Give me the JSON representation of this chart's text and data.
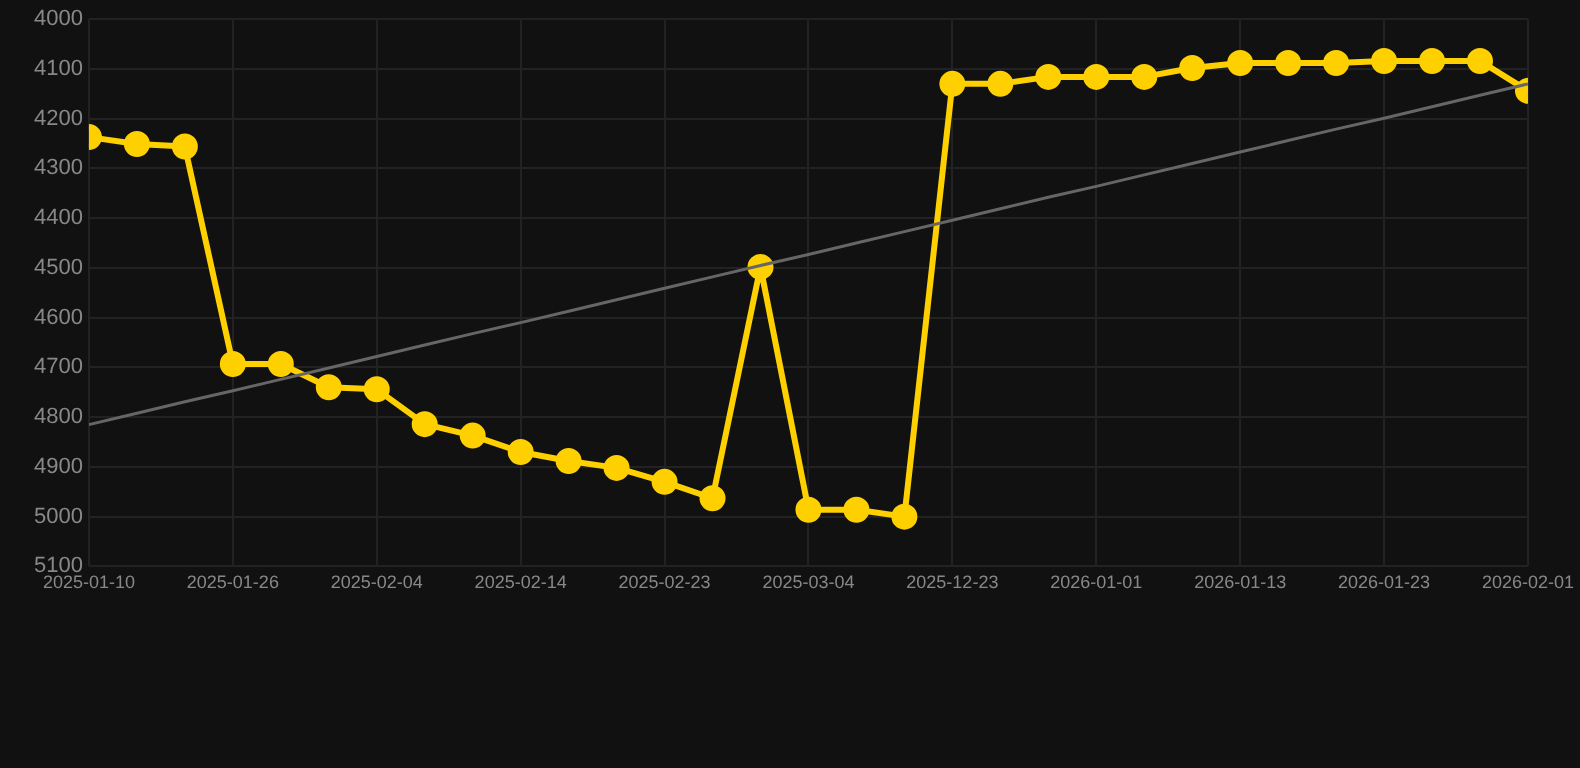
{
  "chart_data": {
    "type": "line",
    "categories": [
      "2025-01-10",
      null,
      null,
      "2025-01-26",
      null,
      null,
      "2025-02-04",
      null,
      null,
      "2025-02-14",
      null,
      null,
      "2025-02-23",
      null,
      null,
      "2025-03-04",
      null,
      null,
      "2025-12-23",
      null,
      null,
      "2026-01-01",
      null,
      null,
      "2026-01-13",
      null,
      null,
      "2026-01-23",
      null,
      null,
      "2026-02-01"
    ],
    "series": [
      {
        "type": "line",
        "color": "#ffd000",
        "marker": "circle",
        "values": [
          4237,
          4251,
          4256,
          4693,
          4693,
          4740,
          4744,
          4814,
          4837,
          4870,
          4888,
          4902,
          4930,
          4963,
          4498,
          4986,
          4986,
          5000,
          4130,
          4130,
          4116,
          4116,
          4116,
          4098,
          4088,
          4088,
          4088,
          4084,
          4084,
          4084,
          4144
        ]
      },
      {
        "type": "line",
        "color": "#666666",
        "marker": "none",
        "values": [
          4815,
          4792,
          4769,
          4747,
          4724,
          4701,
          4678,
          4655,
          4632,
          4610,
          4587,
          4564,
          4541,
          4518,
          4495,
          4473,
          4450,
          4427,
          4404,
          4381,
          4358,
          4336,
          4313,
          4290,
          4267,
          4244,
          4221,
          4199,
          4176,
          4153,
          4130
        ]
      }
    ],
    "ylim": [
      5100,
      4000
    ],
    "yticks": [
      4000,
      4100,
      4200,
      4300,
      4400,
      4500,
      4600,
      4700,
      4800,
      4900,
      5000,
      5100
    ],
    "grid": true,
    "legend": false
  }
}
